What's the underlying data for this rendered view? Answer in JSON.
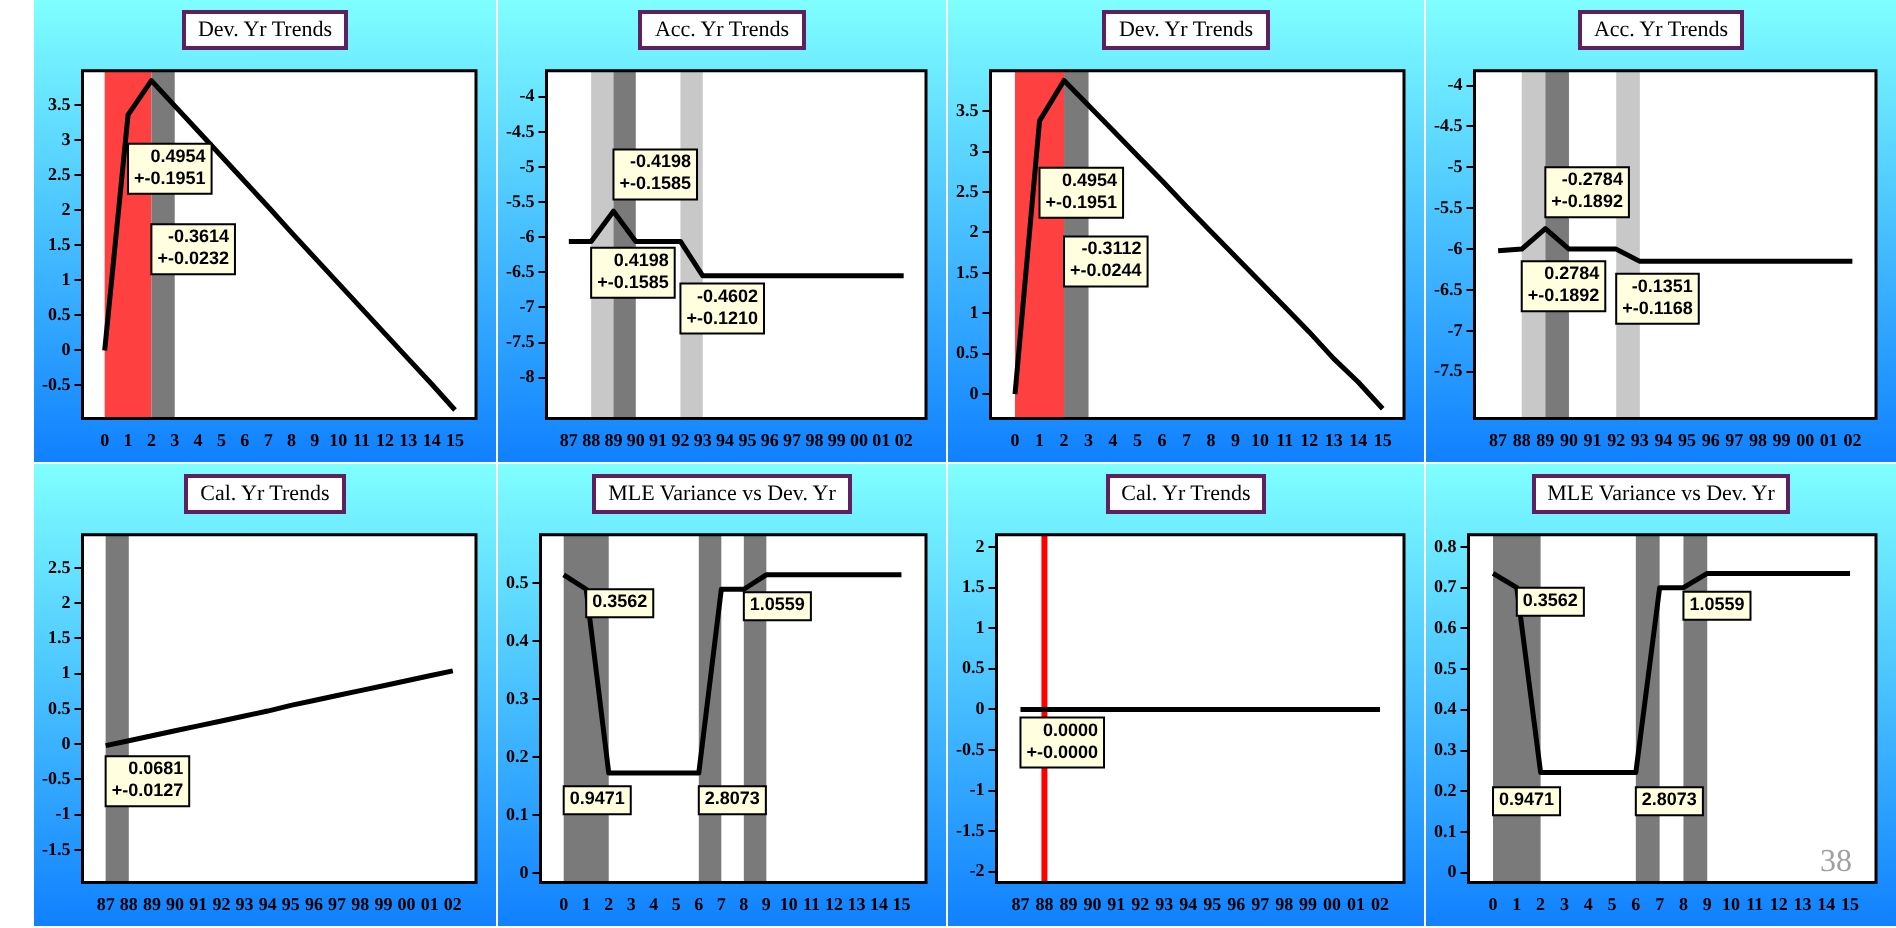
{
  "chart_data": [
    {
      "type": "line",
      "title": "Dev. Yr Trends",
      "x": [
        0,
        1,
        2,
        3,
        4,
        5,
        6,
        7,
        8,
        9,
        10,
        11,
        12,
        13,
        14,
        15
      ],
      "values": [
        0,
        3.36,
        3.85,
        3.49,
        3.13,
        2.77,
        2.41,
        2.05,
        1.68,
        1.32,
        0.96,
        0.6,
        0.24,
        -0.12,
        -0.48,
        -0.85
      ],
      "color": "#000000",
      "xlim": [
        -0.95,
        15.9
      ],
      "xticks": [
        0,
        1,
        2,
        3,
        4,
        5,
        6,
        7,
        8,
        9,
        10,
        11,
        12,
        13,
        14,
        15
      ],
      "ylim": [
        -0.97,
        3.99
      ],
      "yticks": [
        -0.5,
        0,
        0.5,
        1,
        1.5,
        2,
        2.5,
        3,
        3.5
      ],
      "bands": [
        {
          "axis": "x",
          "from": 0,
          "to": 2,
          "color": "#ff4040"
        },
        {
          "axis": "x",
          "from": 2,
          "to": 3,
          "color": "#7a7a7a"
        }
      ],
      "annotations": [
        {
          "text": "0.4954\n+-0.1951",
          "x": 1,
          "y": 2.95
        },
        {
          "text": "-0.3614\n+-0.0232",
          "x": 2,
          "y": 1.8
        }
      ]
    },
    {
      "type": "line",
      "title": "Acc. Yr Trends",
      "x": [
        1987,
        1988,
        1989,
        1990,
        1991,
        1992,
        1993,
        1994,
        1995,
        1996,
        1997,
        1998,
        1999,
        2000,
        2001,
        2002
      ],
      "values": [
        -6.06,
        -6.06,
        -5.63,
        -6.06,
        -6.06,
        -6.06,
        -6.55,
        -6.55,
        -6.55,
        -6.55,
        -6.55,
        -6.55,
        -6.55,
        -6.55,
        -6.55,
        -6.55
      ],
      "color": "#000000",
      "xlim": [
        1986,
        2003
      ],
      "xticks": [
        {
          "value": 1987,
          "label": "87"
        },
        {
          "value": 1988,
          "label": "88"
        },
        {
          "value": 1989,
          "label": "89"
        },
        {
          "value": 1990,
          "label": "90"
        },
        {
          "value": 1991,
          "label": "91"
        },
        {
          "value": 1992,
          "label": "92"
        },
        {
          "value": 1993,
          "label": "93"
        },
        {
          "value": 1994,
          "label": "94"
        },
        {
          "value": 1995,
          "label": "95"
        },
        {
          "value": 1996,
          "label": "96"
        },
        {
          "value": 1997,
          "label": "97"
        },
        {
          "value": 1998,
          "label": "98"
        },
        {
          "value": 1999,
          "label": "99"
        },
        {
          "value": 2000,
          "label": "00"
        },
        {
          "value": 2001,
          "label": "01"
        },
        {
          "value": 2002,
          "label": "02"
        }
      ],
      "ylim": [
        -8.58,
        -3.63
      ],
      "yticks": [
        -8,
        -7.5,
        -7,
        -6.5,
        -6,
        -5.5,
        -5,
        -4.5,
        -4
      ],
      "bands": [
        {
          "axis": "x",
          "from": 1988,
          "to": 1989,
          "color": "#c8c8c8"
        },
        {
          "axis": "x",
          "from": 1989,
          "to": 1990,
          "color": "#7a7a7a"
        },
        {
          "axis": "x",
          "from": 1992,
          "to": 1993,
          "color": "#c8c8c8"
        }
      ],
      "annotations": [
        {
          "text": "-0.4198\n+-0.1585",
          "x": 1989,
          "y": -4.75
        },
        {
          "text": "0.4198\n+-0.1585",
          "x": 1988,
          "y": -6.15
        },
        {
          "text": "-0.4602\n+-0.1210",
          "x": 1992,
          "y": -6.66
        }
      ]
    },
    {
      "type": "line",
      "title": "Dev. Yr Trends",
      "x": [
        0,
        1,
        2,
        3,
        4,
        5,
        6,
        7,
        8,
        9,
        10,
        11,
        12,
        13,
        14,
        15
      ],
      "values": [
        0,
        3.38,
        3.88,
        3.57,
        3.26,
        2.95,
        2.64,
        2.32,
        2.01,
        1.7,
        1.39,
        1.08,
        0.77,
        0.44,
        0.15,
        -0.18
      ],
      "color": "#000000",
      "xlim": [
        -1,
        15.87
      ],
      "xticks": [
        0,
        1,
        2,
        3,
        4,
        5,
        6,
        7,
        8,
        9,
        10,
        11,
        12,
        13,
        14,
        15
      ],
      "ylim": [
        -0.3,
        4
      ],
      "yticks": [
        0,
        0.5,
        1,
        1.5,
        2,
        2.5,
        3,
        3.5
      ],
      "bands": [
        {
          "axis": "x",
          "from": 0,
          "to": 2,
          "color": "#ff4040"
        },
        {
          "axis": "x",
          "from": 2,
          "to": 3,
          "color": "#7a7a7a"
        }
      ],
      "annotations": [
        {
          "text": "0.4954\n+-0.1951",
          "x": 1,
          "y": 2.8
        },
        {
          "text": "-0.3112\n+-0.0244",
          "x": 2,
          "y": 1.95
        }
      ]
    },
    {
      "type": "line",
      "title": "Acc. Yr Trends",
      "x": [
        1987,
        1988,
        1989,
        1990,
        1991,
        1992,
        1993,
        1994,
        1995,
        1996,
        1997,
        1998,
        1999,
        2000,
        2001,
        2002
      ],
      "values": [
        -6.02,
        -6.0,
        -5.75,
        -6.0,
        -6.0,
        -6.0,
        -6.15,
        -6.15,
        -6.15,
        -6.15,
        -6.15,
        -6.15,
        -6.15,
        -6.15,
        -6.15,
        -6.15
      ],
      "color": "#000000",
      "xlim": [
        1986,
        2003
      ],
      "xticks": [
        {
          "value": 1987,
          "label": "87"
        },
        {
          "value": 1988,
          "label": "88"
        },
        {
          "value": 1989,
          "label": "89"
        },
        {
          "value": 1990,
          "label": "90"
        },
        {
          "value": 1991,
          "label": "91"
        },
        {
          "value": 1992,
          "label": "92"
        },
        {
          "value": 1993,
          "label": "93"
        },
        {
          "value": 1994,
          "label": "94"
        },
        {
          "value": 1995,
          "label": "95"
        },
        {
          "value": 1996,
          "label": "96"
        },
        {
          "value": 1997,
          "label": "97"
        },
        {
          "value": 1998,
          "label": "98"
        },
        {
          "value": 1999,
          "label": "99"
        },
        {
          "value": 2000,
          "label": "00"
        },
        {
          "value": 2001,
          "label": "01"
        },
        {
          "value": 2002,
          "label": "02"
        }
      ],
      "ylim": [
        -8.07,
        -3.82
      ],
      "yticks": [
        -7.5,
        -7,
        -6.5,
        -6,
        -5.5,
        -5,
        -4.5,
        -4
      ],
      "bands": [
        {
          "axis": "x",
          "from": 1988,
          "to": 1989,
          "color": "#c8c8c8"
        },
        {
          "axis": "x",
          "from": 1989,
          "to": 1990,
          "color": "#7a7a7a"
        },
        {
          "axis": "x",
          "from": 1992,
          "to": 1993,
          "color": "#c8c8c8"
        }
      ],
      "annotations": [
        {
          "text": "-0.2784\n+-0.1892",
          "x": 1989,
          "y": -5.0
        },
        {
          "text": "0.2784\n+-0.1892",
          "x": 1988,
          "y": -6.15
        },
        {
          "text": "-0.1351\n+-0.1168",
          "x": 1992,
          "y": -6.3
        }
      ]
    },
    {
      "type": "line",
      "title": "Cal. Yr Trends",
      "x": [
        1987,
        1988,
        1989,
        1990,
        1991,
        1992,
        1993,
        1994,
        1995,
        1996,
        1997,
        1998,
        1999,
        2000,
        2001,
        2002
      ],
      "values": [
        -0.02,
        0.05,
        0.12,
        0.19,
        0.26,
        0.33,
        0.4,
        0.47,
        0.55,
        0.62,
        0.69,
        0.76,
        0.83,
        0.9,
        0.97,
        1.04
      ],
      "color": "#000000",
      "xlim": [
        1986,
        2003
      ],
      "xticks": [
        {
          "value": 1987,
          "label": "87"
        },
        {
          "value": 1988,
          "label": "88"
        },
        {
          "value": 1989,
          "label": "89"
        },
        {
          "value": 1990,
          "label": "90"
        },
        {
          "value": 1991,
          "label": "91"
        },
        {
          "value": 1992,
          "label": "92"
        },
        {
          "value": 1993,
          "label": "93"
        },
        {
          "value": 1994,
          "label": "94"
        },
        {
          "value": 1995,
          "label": "95"
        },
        {
          "value": 1996,
          "label": "96"
        },
        {
          "value": 1997,
          "label": "97"
        },
        {
          "value": 1998,
          "label": "98"
        },
        {
          "value": 1999,
          "label": "99"
        },
        {
          "value": 2000,
          "label": "00"
        },
        {
          "value": 2001,
          "label": "01"
        },
        {
          "value": 2002,
          "label": "02"
        }
      ],
      "ylim": [
        -1.96,
        2.97
      ],
      "yticks": [
        -1.5,
        -1,
        -0.5,
        0,
        0.5,
        1,
        1.5,
        2,
        2.5
      ],
      "bands": [
        {
          "axis": "x",
          "from": 1987,
          "to": 1988,
          "color": "#7a7a7a"
        }
      ],
      "annotations": [
        {
          "text": "0.0681\n+-0.0127",
          "x": 1987,
          "y": -0.17
        }
      ]
    },
    {
      "type": "line",
      "title": "MLE Variance vs Dev. Yr",
      "x": [
        0,
        1,
        2,
        3,
        4,
        5,
        6,
        7,
        8,
        9,
        10,
        11,
        12,
        13,
        14,
        15
      ],
      "values": [
        0.515,
        0.49,
        0.173,
        0.173,
        0.173,
        0.173,
        0.173,
        0.49,
        0.49,
        0.515,
        0.515,
        0.515,
        0.515,
        0.515,
        0.515,
        0.515
      ],
      "color": "#000000",
      "xlim": [
        -1.03,
        16.09
      ],
      "xticks": [
        0,
        1,
        2,
        3,
        4,
        5,
        6,
        7,
        8,
        9,
        10,
        11,
        12,
        13,
        14,
        15
      ],
      "ylim": [
        -0.016,
        0.584
      ],
      "yticks": [
        0,
        0.1,
        0.2,
        0.3,
        0.4,
        0.5
      ],
      "bands": [
        {
          "axis": "x",
          "from": 0,
          "to": 2,
          "color": "#7a7a7a"
        },
        {
          "axis": "x",
          "from": 6,
          "to": 7,
          "color": "#7a7a7a"
        },
        {
          "axis": "x",
          "from": 8,
          "to": 9,
          "color": "#7a7a7a"
        }
      ],
      "annotations": [
        {
          "text": "0.3562",
          "x": 1,
          "y": 0.49
        },
        {
          "text": "0.9471",
          "x": 0,
          "y": 0.15
        },
        {
          "text": "2.8073",
          "x": 6,
          "y": 0.15
        },
        {
          "text": "1.0559",
          "x": 8,
          "y": 0.485
        }
      ]
    },
    {
      "type": "line",
      "title": "Cal. Yr Trends",
      "x": [
        1987,
        1988,
        1989,
        1990,
        1991,
        1992,
        1993,
        1994,
        1995,
        1996,
        1997,
        1998,
        1999,
        2000,
        2001,
        2002
      ],
      "values": [
        0,
        0,
        0,
        0,
        0,
        0,
        0,
        0,
        0,
        0,
        0,
        0,
        0,
        0,
        0,
        0
      ],
      "color": "#000000",
      "xlim": [
        1986,
        2003
      ],
      "xticks": [
        {
          "value": 1987,
          "label": "87"
        },
        {
          "value": 1988,
          "label": "88"
        },
        {
          "value": 1989,
          "label": "89"
        },
        {
          "value": 1990,
          "label": "90"
        },
        {
          "value": 1991,
          "label": "91"
        },
        {
          "value": 1992,
          "label": "92"
        },
        {
          "value": 1993,
          "label": "93"
        },
        {
          "value": 1994,
          "label": "94"
        },
        {
          "value": 1995,
          "label": "95"
        },
        {
          "value": 1996,
          "label": "96"
        },
        {
          "value": 1997,
          "label": "97"
        },
        {
          "value": 1998,
          "label": "98"
        },
        {
          "value": 1999,
          "label": "99"
        },
        {
          "value": 2000,
          "label": "00"
        },
        {
          "value": 2001,
          "label": "01"
        },
        {
          "value": 2002,
          "label": "02"
        }
      ],
      "ylim": [
        -2.13,
        2.15
      ],
      "yticks": [
        -2,
        -1.5,
        -1,
        -0.5,
        0,
        0.5,
        1,
        1.5,
        2
      ],
      "ref_lines": [
        {
          "axis": "x",
          "value": 1988,
          "color": "#ff0000"
        }
      ],
      "annotations": [
        {
          "text": "0.0000\n+-0.0000",
          "x": 1987,
          "y": -0.1
        }
      ]
    },
    {
      "type": "line",
      "title": "MLE Variance vs Dev. Yr",
      "x": [
        0,
        1,
        2,
        3,
        4,
        5,
        6,
        7,
        8,
        9,
        10,
        11,
        12,
        13,
        14,
        15
      ],
      "values": [
        0.735,
        0.7,
        0.246,
        0.246,
        0.246,
        0.246,
        0.246,
        0.7,
        0.7,
        0.735,
        0.735,
        0.735,
        0.735,
        0.735,
        0.735,
        0.735
      ],
      "color": "#000000",
      "xlim": [
        -1.03,
        16.09
      ],
      "xticks": [
        0,
        1,
        2,
        3,
        4,
        5,
        6,
        7,
        8,
        9,
        10,
        11,
        12,
        13,
        14,
        15
      ],
      "ylim": [
        -0.024,
        0.83
      ],
      "yticks": [
        0,
        0.1,
        0.2,
        0.3,
        0.4,
        0.5,
        0.6,
        0.7,
        0.8
      ],
      "bands": [
        {
          "axis": "x",
          "from": 0,
          "to": 2,
          "color": "#7a7a7a"
        },
        {
          "axis": "x",
          "from": 6,
          "to": 7,
          "color": "#7a7a7a"
        },
        {
          "axis": "x",
          "from": 8,
          "to": 9,
          "color": "#7a7a7a"
        }
      ],
      "annotations": [
        {
          "text": "0.3562",
          "x": 1,
          "y": 0.7
        },
        {
          "text": "0.9471",
          "x": 0,
          "y": 0.21
        },
        {
          "text": "2.8073",
          "x": 6,
          "y": 0.21
        },
        {
          "text": "1.0559",
          "x": 8,
          "y": 0.69
        },
        "38"
      ]
    }
  ]
}
